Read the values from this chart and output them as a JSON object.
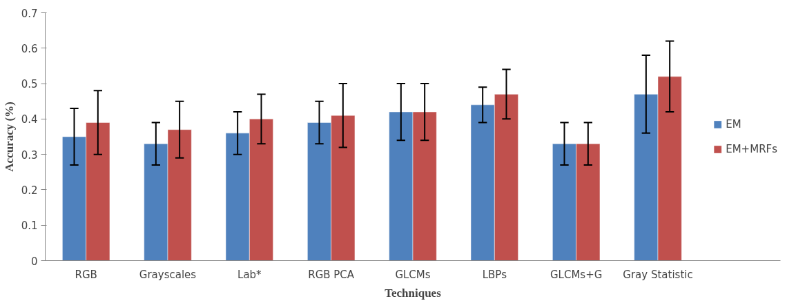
{
  "chart_data": {
    "type": "bar",
    "xlabel": "Techniques",
    "ylabel": "Accuracy (%)",
    "categories": [
      "RGB",
      "Grayscales",
      "Lab*",
      "RGB PCA",
      "GLCMs",
      "LBPs",
      "GLCMs+G",
      "Gray Statistic"
    ],
    "series": [
      {
        "name": "EM",
        "color": "#4f81bd",
        "values": [
          0.35,
          0.33,
          0.36,
          0.39,
          0.42,
          0.44,
          0.33,
          0.47
        ],
        "errors": [
          [
            0.27,
            0.43
          ],
          [
            0.27,
            0.39
          ],
          [
            0.3,
            0.42
          ],
          [
            0.33,
            0.45
          ],
          [
            0.34,
            0.5
          ],
          [
            0.39,
            0.49
          ],
          [
            0.27,
            0.39
          ],
          [
            0.36,
            0.58
          ]
        ]
      },
      {
        "name": "EM+MRFs",
        "color": "#c0504d",
        "values": [
          0.39,
          0.37,
          0.4,
          0.41,
          0.42,
          0.47,
          0.33,
          0.52
        ],
        "errors": [
          [
            0.3,
            0.48
          ],
          [
            0.29,
            0.45
          ],
          [
            0.33,
            0.47
          ],
          [
            0.32,
            0.5
          ],
          [
            0.34,
            0.5
          ],
          [
            0.4,
            0.54
          ],
          [
            0.27,
            0.39
          ],
          [
            0.42,
            0.62
          ]
        ]
      }
    ],
    "ylim": [
      0,
      0.7
    ],
    "yticks": [
      0,
      0.1,
      0.2,
      0.3,
      0.4,
      0.5,
      0.6,
      0.7
    ],
    "grid": false,
    "legend": "right"
  }
}
